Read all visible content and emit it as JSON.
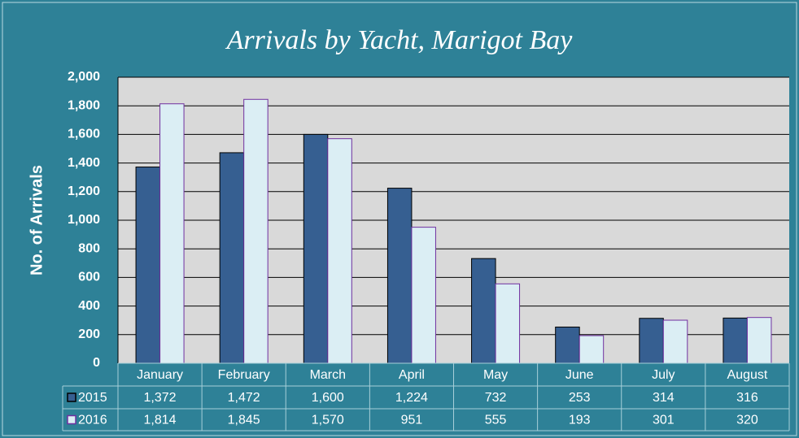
{
  "chart_data": {
    "type": "bar",
    "title": "Arrivals by Yacht, Marigot Bay",
    "y_label": "No. of Arrivals",
    "categories": [
      "January",
      "February",
      "March",
      "April",
      "May",
      "June",
      "July",
      "August"
    ],
    "series": [
      {
        "name": "2015",
        "color": "#365f91",
        "values": [
          1372,
          1472,
          1600,
          1224,
          732,
          253,
          314,
          316
        ],
        "value_labels": [
          "1,372",
          "1,472",
          "1,600",
          "1,224",
          "732",
          "253",
          "314",
          "316"
        ]
      },
      {
        "name": "2016",
        "color": "#dbeef4",
        "values": [
          1814,
          1845,
          1570,
          951,
          555,
          193,
          301,
          320
        ],
        "value_labels": [
          "1,814",
          "1,845",
          "1,570",
          "951",
          "555",
          "193",
          "301",
          "320"
        ]
      }
    ],
    "ylim": [
      0,
      2000
    ],
    "yticks": [
      0,
      200,
      400,
      600,
      800,
      {
        "value": 1000,
        "label": "1,000"
      },
      {
        "value": 1200,
        "label": "1,200"
      },
      {
        "value": 1400,
        "label": "1,400"
      },
      {
        "value": 1600,
        "label": "1,600"
      },
      {
        "value": 1800,
        "label": "1,800"
      },
      {
        "value": 2000,
        "label": "2,000"
      }
    ],
    "grid": true
  }
}
